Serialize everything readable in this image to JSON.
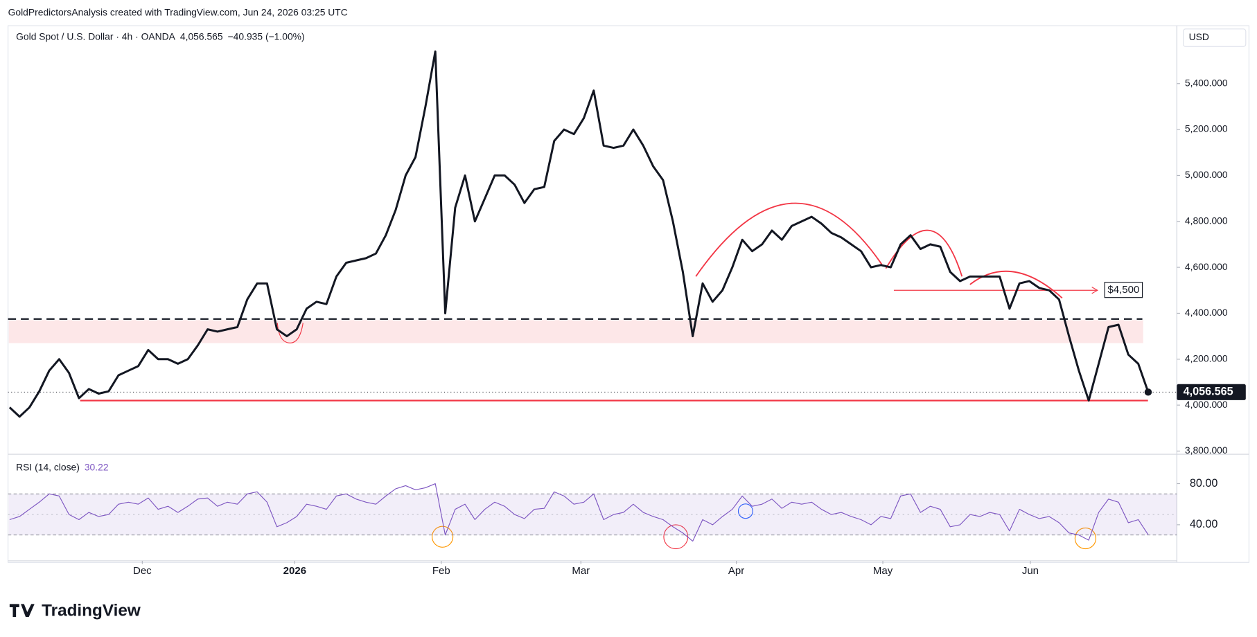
{
  "header": "GoldPredictorsAnalysis created with TradingView.com, Jun 24, 2026 03:25 UTC",
  "chart_data": {
    "type": "line",
    "title": "Gold Spot / U.S. Dollar · 4h · OANDA",
    "last_label": "4,056.565",
    "change": "−40.935 (−1.00%)",
    "currency": "USD",
    "color": "#131722",
    "values": [
      3990,
      3950,
      3990,
      4060,
      4150,
      4200,
      4140,
      4030,
      4070,
      4050,
      4060,
      4130,
      4150,
      4170,
      4240,
      4200,
      4200,
      4180,
      4200,
      4260,
      4330,
      4320,
      4330,
      4340,
      4460,
      4530,
      4530,
      4330,
      4300,
      4330,
      4420,
      4450,
      4440,
      4560,
      4620,
      4630,
      4640,
      4660,
      4740,
      4850,
      5000,
      5080,
      5300,
      5540,
      4400,
      4860,
      5000,
      4800,
      4900,
      5000,
      5000,
      4960,
      4880,
      4940,
      4950,
      5150,
      5200,
      5180,
      5250,
      5370,
      5130,
      5120,
      5130,
      5200,
      5130,
      5040,
      4980,
      4800,
      4580,
      4300,
      4530,
      4450,
      4500,
      4600,
      4720,
      4670,
      4700,
      4760,
      4720,
      4780,
      4800,
      4820,
      4790,
      4750,
      4730,
      4700,
      4670,
      4600,
      4610,
      4600,
      4700,
      4740,
      4680,
      4700,
      4690,
      4580,
      4540,
      4560,
      4560,
      4560,
      4560,
      4420,
      4530,
      4540,
      4510,
      4500,
      4460,
      4300,
      4150,
      4020,
      4180,
      4340,
      4350,
      4220,
      4180,
      4056.565
    ],
    "ylim": [
      3786,
      5652
    ],
    "yticks": [
      {
        "value": 3800,
        "label": "3,800.000"
      },
      {
        "value": 4000,
        "label": "4,000.000"
      },
      {
        "value": 4200,
        "label": "4,200.000"
      },
      {
        "value": 4400,
        "label": "4,400.000"
      },
      {
        "value": 4600,
        "label": "4,600.000"
      },
      {
        "value": 4800,
        "label": "4,800.000"
      },
      {
        "value": 5000,
        "label": "5,000.000"
      },
      {
        "value": 5200,
        "label": "5,200.000"
      },
      {
        "value": 5400,
        "label": "5,400.000"
      }
    ],
    "xticks": [
      {
        "value": 13.4,
        "label": "Dec"
      },
      {
        "value": 28.8,
        "label": "2026"
      },
      {
        "value": 43.6,
        "label": "Feb"
      },
      {
        "value": 57.7,
        "label": "Mar"
      },
      {
        "value": 73.4,
        "label": "Apr"
      },
      {
        "value": 88.2,
        "label": "May"
      },
      {
        "value": 103.1,
        "label": "Jun"
      }
    ],
    "annotations": {
      "resistance": 4375,
      "zone": [
        4270,
        4370
      ],
      "support": 4020,
      "target": {
        "value": 4500,
        "label": "$4,500"
      }
    },
    "rsi": {
      "type": "line",
      "title": "RSI (14, close)",
      "color": "#7e57c2",
      "values": [
        45,
        48,
        55,
        62,
        70,
        68,
        50,
        45,
        52,
        48,
        50,
        60,
        62,
        60,
        66,
        55,
        58,
        52,
        58,
        65,
        66,
        58,
        62,
        60,
        70,
        72,
        62,
        38,
        42,
        48,
        60,
        58,
        55,
        68,
        70,
        65,
        62,
        60,
        68,
        75,
        78,
        74,
        76,
        80,
        30,
        55,
        60,
        45,
        55,
        62,
        58,
        50,
        46,
        55,
        56,
        72,
        68,
        60,
        62,
        70,
        45,
        50,
        52,
        60,
        52,
        48,
        45,
        38,
        32,
        24,
        45,
        40,
        48,
        55,
        68,
        58,
        60,
        65,
        56,
        62,
        60,
        62,
        55,
        50,
        52,
        48,
        45,
        40,
        48,
        46,
        68,
        70,
        52,
        58,
        55,
        38,
        40,
        50,
        48,
        52,
        50,
        34,
        55,
        50,
        46,
        48,
        42,
        32,
        30,
        25,
        52,
        65,
        62,
        42,
        45,
        30.22
      ],
      "ylim": [
        4.9,
        108.6
      ],
      "yticks": [
        {
          "value": 80,
          "label": "80.00"
        },
        {
          "value": 40,
          "label": "40.00"
        }
      ],
      "band": [
        30,
        70
      ],
      "midline": 50
    }
  },
  "footer": "TradingView"
}
